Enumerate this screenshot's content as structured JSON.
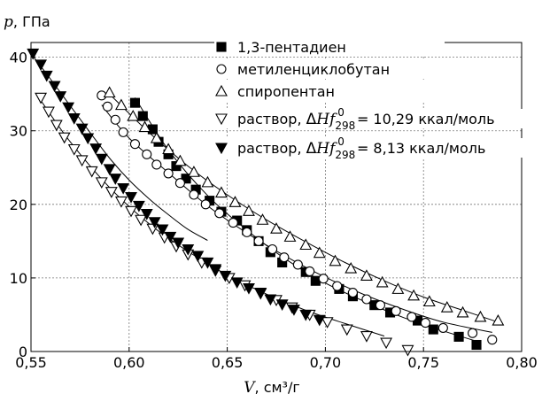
{
  "chart_data": {
    "type": "scatter",
    "title": "",
    "ylabel_var": "p",
    "ylabel_unit": ", ГПа",
    "xlabel_var": "V",
    "xlabel_unit": ", см³/г",
    "xlim": [
      0.55,
      0.8
    ],
    "ylim": [
      0,
      42
    ],
    "x_ticks": [
      0.55,
      0.6,
      0.65,
      0.7,
      0.75,
      0.8
    ],
    "x_tick_labels": [
      "0,55",
      "0,60",
      "0,65",
      "0,70",
      "0,75",
      "0,80"
    ],
    "y_ticks": [
      0,
      10,
      20,
      30,
      40
    ],
    "y_tick_labels": [
      "0",
      "10",
      "20",
      "30",
      "40"
    ],
    "grid": true,
    "legend_position": "top-right",
    "series": [
      {
        "name": "1,3-пентадиен",
        "marker": "square-filled",
        "points": [
          [
            0.603,
            33.8
          ],
          [
            0.607,
            32.0
          ],
          [
            0.612,
            30.2
          ],
          [
            0.615,
            28.5
          ],
          [
            0.62,
            26.8
          ],
          [
            0.624,
            25.2
          ],
          [
            0.629,
            23.5
          ],
          [
            0.634,
            22.0
          ],
          [
            0.641,
            20.5
          ],
          [
            0.647,
            19.0
          ],
          [
            0.655,
            17.8
          ],
          [
            0.66,
            16.5
          ],
          [
            0.666,
            15.0
          ],
          [
            0.672,
            13.5
          ],
          [
            0.678,
            12.1
          ],
          [
            0.69,
            10.8
          ],
          [
            0.695,
            9.6
          ],
          [
            0.707,
            8.5
          ],
          [
            0.714,
            7.5
          ],
          [
            0.725,
            6.3
          ],
          [
            0.733,
            5.3
          ],
          [
            0.747,
            4.2
          ],
          [
            0.755,
            3.0
          ],
          [
            0.768,
            2.0
          ],
          [
            0.777,
            0.9
          ]
        ],
        "fit": [
          [
            0.603,
            34.5
          ],
          [
            0.62,
            27.4
          ],
          [
            0.64,
            21.2
          ],
          [
            0.66,
            16.5
          ],
          [
            0.68,
            12.5
          ],
          [
            0.7,
            9.3
          ],
          [
            0.72,
            6.8
          ],
          [
            0.74,
            4.6
          ],
          [
            0.76,
            2.8
          ],
          [
            0.777,
            1.4
          ]
        ]
      },
      {
        "name": "метиленциклобутан",
        "marker": "circle-open",
        "points": [
          [
            0.586,
            34.8
          ],
          [
            0.589,
            33.3
          ],
          [
            0.593,
            31.5
          ],
          [
            0.597,
            29.8
          ],
          [
            0.603,
            28.2
          ],
          [
            0.609,
            26.8
          ],
          [
            0.614,
            25.4
          ],
          [
            0.62,
            24.2
          ],
          [
            0.626,
            22.9
          ],
          [
            0.633,
            21.3
          ],
          [
            0.639,
            20.0
          ],
          [
            0.646,
            18.8
          ],
          [
            0.653,
            17.5
          ],
          [
            0.66,
            16.2
          ],
          [
            0.666,
            15.0
          ],
          [
            0.673,
            13.9
          ],
          [
            0.679,
            12.8
          ],
          [
            0.686,
            11.8
          ],
          [
            0.692,
            10.9
          ],
          [
            0.699,
            9.9
          ],
          [
            0.706,
            8.9
          ],
          [
            0.714,
            8.0
          ],
          [
            0.721,
            7.1
          ],
          [
            0.728,
            6.3
          ],
          [
            0.736,
            5.5
          ],
          [
            0.744,
            4.7
          ],
          [
            0.751,
            3.9
          ],
          [
            0.76,
            3.2
          ],
          [
            0.775,
            2.5
          ],
          [
            0.785,
            1.6
          ]
        ],
        "fit": [
          [
            0.586,
            33.5
          ],
          [
            0.6,
            29.0
          ],
          [
            0.62,
            24.3
          ],
          [
            0.64,
            19.8
          ],
          [
            0.66,
            16.1
          ],
          [
            0.68,
            12.9
          ],
          [
            0.7,
            10.1
          ],
          [
            0.72,
            7.7
          ],
          [
            0.74,
            5.7
          ],
          [
            0.76,
            4.0
          ],
          [
            0.785,
            2.6
          ]
        ]
      },
      {
        "name": "спиропентан",
        "marker": "triangle-up-open",
        "points": [
          [
            0.59,
            35.2
          ],
          [
            0.596,
            33.5
          ],
          [
            0.602,
            32.0
          ],
          [
            0.608,
            30.5
          ],
          [
            0.614,
            29.0
          ],
          [
            0.62,
            27.5
          ],
          [
            0.626,
            25.9
          ],
          [
            0.633,
            24.4
          ],
          [
            0.64,
            23.0
          ],
          [
            0.647,
            21.6
          ],
          [
            0.654,
            20.3
          ],
          [
            0.661,
            19.1
          ],
          [
            0.668,
            17.9
          ],
          [
            0.675,
            16.7
          ],
          [
            0.682,
            15.6
          ],
          [
            0.69,
            14.5
          ],
          [
            0.697,
            13.4
          ],
          [
            0.705,
            12.3
          ],
          [
            0.713,
            11.3
          ],
          [
            0.721,
            10.3
          ],
          [
            0.729,
            9.4
          ],
          [
            0.737,
            8.5
          ],
          [
            0.745,
            7.6
          ],
          [
            0.753,
            6.8
          ],
          [
            0.762,
            6.0
          ],
          [
            0.77,
            5.3
          ],
          [
            0.779,
            4.7
          ],
          [
            0.788,
            4.2
          ]
        ],
        "fit": [
          [
            0.59,
            35.0
          ],
          [
            0.61,
            29.8
          ],
          [
            0.63,
            25.2
          ],
          [
            0.65,
            21.3
          ],
          [
            0.67,
            17.9
          ],
          [
            0.69,
            14.9
          ],
          [
            0.71,
            12.1
          ],
          [
            0.73,
            9.6
          ],
          [
            0.75,
            7.4
          ],
          [
            0.77,
            5.6
          ],
          [
            0.788,
            4.0
          ]
        ]
      },
      {
        "name_prefix": "раствор, ",
        "name_value": "= 10,29 ккал/моль",
        "marker": "triangle-down-open",
        "points": [
          [
            0.555,
            34.5
          ],
          [
            0.559,
            32.6
          ],
          [
            0.563,
            30.8
          ],
          [
            0.567,
            29.1
          ],
          [
            0.572,
            27.5
          ],
          [
            0.576,
            26.0
          ],
          [
            0.581,
            24.5
          ],
          [
            0.586,
            23.0
          ],
          [
            0.591,
            21.7
          ],
          [
            0.596,
            20.4
          ],
          [
            0.601,
            19.1
          ],
          [
            0.606,
            17.9
          ],
          [
            0.612,
            16.7
          ],
          [
            0.618,
            15.5
          ],
          [
            0.624,
            14.3
          ],
          [
            0.63,
            13.2
          ],
          [
            0.637,
            12.1
          ],
          [
            0.644,
            11.0
          ],
          [
            0.651,
            10.0
          ],
          [
            0.659,
            9.0
          ],
          [
            0.667,
            8.0
          ],
          [
            0.675,
            7.0
          ],
          [
            0.683,
            6.0
          ],
          [
            0.692,
            5.0
          ],
          [
            0.701,
            4.0
          ],
          [
            0.711,
            3.0
          ],
          [
            0.721,
            2.1
          ],
          [
            0.731,
            1.2
          ],
          [
            0.742,
            0.2
          ]
        ],
        "fit": [
          [
            0.554,
            34.5
          ],
          [
            0.57,
            28.5
          ],
          [
            0.59,
            22.3
          ],
          [
            0.61,
            17.4
          ],
          [
            0.63,
            13.6
          ],
          [
            0.65,
            10.4
          ],
          [
            0.67,
            7.8
          ],
          [
            0.69,
            5.6
          ],
          [
            0.71,
            3.8
          ],
          [
            0.73,
            2.1
          ]
        ]
      },
      {
        "name_prefix": "раствор, ",
        "name_value": "= 8,13 ккал/моль",
        "marker": "triangle-down-filled",
        "points": [
          [
            0.551,
            40.5
          ],
          [
            0.555,
            39.0
          ],
          [
            0.558,
            37.5
          ],
          [
            0.562,
            36.1
          ],
          [
            0.565,
            34.7
          ],
          [
            0.569,
            33.2
          ],
          [
            0.572,
            31.7
          ],
          [
            0.576,
            30.3
          ],
          [
            0.579,
            29.0
          ],
          [
            0.583,
            27.6
          ],
          [
            0.586,
            26.2
          ],
          [
            0.59,
            24.8
          ],
          [
            0.593,
            23.5
          ],
          [
            0.597,
            22.2
          ],
          [
            0.601,
            21.0
          ],
          [
            0.605,
            19.8
          ],
          [
            0.609,
            18.7
          ],
          [
            0.613,
            17.6
          ],
          [
            0.617,
            16.6
          ],
          [
            0.621,
            15.6
          ],
          [
            0.625,
            14.8
          ],
          [
            0.63,
            13.9
          ],
          [
            0.635,
            13.0
          ],
          [
            0.64,
            12.1
          ],
          [
            0.644,
            11.2
          ],
          [
            0.649,
            10.3
          ],
          [
            0.655,
            9.4
          ],
          [
            0.661,
            8.6
          ],
          [
            0.667,
            7.9
          ],
          [
            0.672,
            7.1
          ],
          [
            0.678,
            6.4
          ],
          [
            0.684,
            5.7
          ],
          [
            0.69,
            5.0
          ],
          [
            0.697,
            4.3
          ]
        ],
        "fit": [
          [
            0.55,
            40.5
          ],
          [
            0.56,
            37.0
          ],
          [
            0.57,
            33.4
          ],
          [
            0.58,
            29.8
          ],
          [
            0.59,
            26.3
          ],
          [
            0.6,
            23.3
          ],
          [
            0.61,
            20.8
          ],
          [
            0.62,
            18.6
          ],
          [
            0.63,
            16.6
          ],
          [
            0.64,
            15.1
          ]
        ]
      }
    ]
  }
}
